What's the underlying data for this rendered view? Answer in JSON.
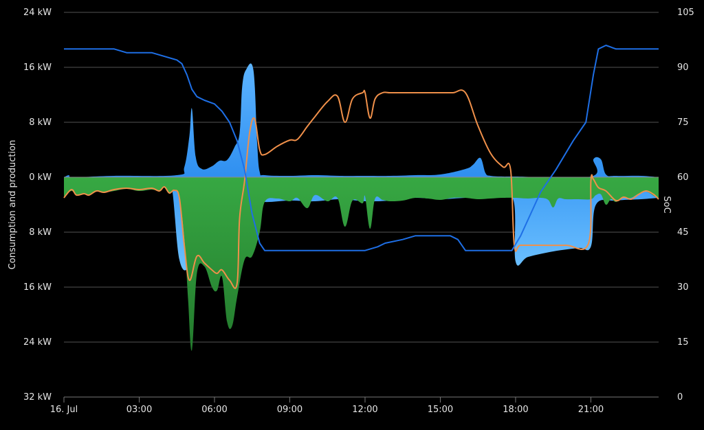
{
  "chart_data": {
    "type": "area",
    "ylabel_left": "Consumption and production",
    "ylabel_right": "SoC",
    "y_left_ticks": [
      "24 kW",
      "16 kW",
      "8 kW",
      "0 kW",
      "8 kW",
      "16 kW",
      "24 kW",
      "32 kW"
    ],
    "y_left_values": [
      24,
      16,
      8,
      0,
      -8,
      -16,
      -24,
      -32
    ],
    "y_left_range": [
      -32,
      24
    ],
    "y_right_ticks": [
      "105",
      "90",
      "75",
      "60",
      "45",
      "30",
      "15",
      "0"
    ],
    "y_right_values": [
      105,
      90,
      75,
      60,
      45,
      30,
      15,
      0
    ],
    "y_right_range": [
      0,
      105
    ],
    "x_ticks": [
      "16. Jul",
      "03:00",
      "06:00",
      "09:00",
      "12:00",
      "15:00",
      "18:00",
      "21:00"
    ],
    "x_tick_hours": [
      0,
      3,
      6,
      9,
      12,
      15,
      18,
      21
    ],
    "x_range_hours": [
      0,
      23.7
    ],
    "grid": true,
    "colors": {
      "grid": "#555555",
      "production_light_blue": "#4aa8ff",
      "consumption_green": "#2e9e3a",
      "soc_line": "#1e6fe6",
      "grid_power_line": "#f0904a",
      "text": "#e6e6e6"
    },
    "series": [
      {
        "kind": "area",
        "x": [
          0,
          0.2,
          0.4,
          2,
          4.5,
          4.8,
          5.0,
          5.1,
          5.25,
          5.5,
          5.9,
          6.2,
          6.5,
          6.8,
          7.0,
          7.1,
          7.25,
          7.55,
          7.7,
          7.8,
          8.0,
          9,
          10,
          11,
          12,
          13,
          14,
          15,
          16,
          16.3,
          16.6,
          16.8,
          17,
          17.5,
          18,
          21,
          21.1,
          21.4,
          21.6,
          22,
          23,
          23.7
        ],
        "y": [
          0,
          0.3,
          0,
          0.2,
          0.3,
          1.5,
          6,
          10,
          3,
          1.2,
          1.6,
          2.4,
          2.5,
          4.4,
          6.4,
          13,
          15.6,
          15.6,
          5,
          0.8,
          0.3,
          0.2,
          0.3,
          0.2,
          0.2,
          0.2,
          0.3,
          0.4,
          1.2,
          1.8,
          2.8,
          0.6,
          0.2,
          0.1,
          0.1,
          0.1,
          2.6,
          2.6,
          0.4,
          0.2,
          0.2,
          0
        ]
      },
      {
        "kind": "area",
        "x": [
          0,
          1,
          2,
          3,
          4,
          4.3,
          4.6,
          5.0,
          5.3,
          5.6,
          6.0,
          6.3,
          6.7,
          7.2,
          7.5,
          7.7,
          8,
          9,
          10,
          11,
          12,
          13,
          14,
          15,
          16,
          17,
          17.9,
          18.0,
          18.5,
          19.5,
          20.5,
          21.0,
          21.2,
          22,
          23,
          23.7
        ],
        "y": [
          -0.5,
          -0.7,
          -0.8,
          -0.8,
          -0.6,
          -1.5,
          -12,
          -13,
          -8,
          -9,
          -9.5,
          -10,
          -8,
          -4,
          -10,
          -3,
          -3.6,
          -3.4,
          -3.5,
          -3.2,
          -3.5,
          -3.4,
          -3.0,
          -3.2,
          -3.0,
          -3.0,
          -3.2,
          -12.3,
          -11.6,
          -10.8,
          -10.3,
          -10.1,
          -4,
          -3.4,
          -3.2,
          -3.0
        ]
      },
      {
        "kind": "area",
        "x": [
          0,
          0.3,
          0.5,
          0.8,
          1.0,
          1.3,
          1.6,
          2.0,
          2.5,
          3.0,
          3.5,
          3.8,
          4.0,
          4.2,
          4.4,
          4.6,
          4.8,
          4.95,
          5.1,
          5.3,
          5.6,
          5.9,
          6.1,
          6.3,
          6.5,
          6.7,
          6.9,
          7.2,
          7.5,
          7.8,
          8.0,
          8.5,
          9.0,
          9.3,
          9.7,
          10.0,
          10.5,
          10.9,
          11.2,
          11.5,
          11.9,
          12.0,
          12.2,
          12.4,
          12.7,
          13.0,
          13.5,
          14.0,
          14.5,
          15.0,
          15.5,
          16.0,
          16.5,
          17.0,
          17.5,
          18.0,
          18.5,
          19.0,
          19.3,
          19.5,
          19.7,
          20.0,
          20.5,
          21.0,
          21.2,
          21.4,
          21.6,
          21.8,
          22.0,
          22.3,
          22.6,
          22.9,
          23.2,
          23.5,
          23.7
        ],
        "y": [
          -2.8,
          -2.0,
          -2.6,
          -2.4,
          -2.6,
          -2.0,
          -2.2,
          -2.0,
          -1.7,
          -2.0,
          -1.8,
          -2.0,
          -1.4,
          -2.3,
          -1.9,
          -3.0,
          -9,
          -18,
          -25.2,
          -14,
          -13,
          -16,
          -16.5,
          -14.5,
          -21,
          -21.7,
          -17.5,
          -12,
          -11.5,
          -8,
          -3.6,
          -3.1,
          -3.5,
          -3.0,
          -4.5,
          -2.6,
          -3.5,
          -3.0,
          -7.2,
          -3.4,
          -3.8,
          -2.8,
          -7.5,
          -3.1,
          -3.3,
          -3.5,
          -3.4,
          -3.0,
          -3.1,
          -3.3,
          -3.0,
          -3.0,
          -3.2,
          -3.1,
          -3.0,
          -3.0,
          -3.1,
          -3.0,
          -3.3,
          -4.4,
          -3.1,
          -3.2,
          -3.2,
          -3.2,
          -2.6,
          -2.5,
          -4.0,
          -3.2,
          -3.6,
          -3.0,
          -3.0,
          -2.4,
          -2.1,
          -2.7,
          -3.2
        ]
      },
      {
        "kind": "line",
        "axis": "left",
        "x": [
          0,
          0.3,
          0.5,
          0.8,
          1.0,
          1.3,
          1.6,
          2.0,
          2.5,
          3.0,
          3.5,
          3.8,
          4.0,
          4.2,
          4.4,
          4.6,
          4.8,
          5.0,
          5.3,
          5.6,
          5.9,
          6.1,
          6.3,
          6.6,
          6.9,
          7.0,
          7.2,
          7.4,
          7.6,
          7.8,
          8.0,
          8.5,
          9.0,
          9.3,
          9.7,
          10.0,
          10.5,
          10.9,
          11.2,
          11.5,
          11.9,
          12.0,
          12.2,
          12.4,
          12.7,
          13.0,
          13.5,
          14.0,
          14.5,
          15.0,
          15.5,
          16.0,
          16.5,
          17.0,
          17.5,
          17.8,
          17.95,
          18.2,
          19.0,
          20.0,
          20.9,
          21.0,
          21.1,
          21.3,
          21.6,
          22.0,
          22.3,
          22.6,
          22.9,
          23.2,
          23.5,
          23.7
        ],
        "y": [
          -3.0,
          -1.8,
          -2.6,
          -2.4,
          -2.6,
          -2.0,
          -2.2,
          -1.8,
          -1.6,
          -1.8,
          -1.6,
          -2.0,
          -1.4,
          -2.3,
          -1.9,
          -3.0,
          -10,
          -15,
          -11.5,
          -12.5,
          -13.5,
          -14,
          -13.5,
          -15,
          -15.5,
          -6,
          -0.5,
          6.5,
          8.5,
          4,
          3.3,
          4.5,
          5.4,
          5.5,
          7.4,
          8.8,
          11,
          11.8,
          8,
          11.4,
          12.3,
          12.3,
          8.6,
          11.4,
          12.3,
          12.3,
          12.3,
          12.3,
          12.3,
          12.3,
          12.3,
          12.3,
          7.5,
          3.5,
          1.5,
          1.1,
          -9.9,
          -9.9,
          -9.9,
          -9.9,
          -9.7,
          -0.5,
          -0.3,
          -1.5,
          -2.0,
          -3.4,
          -2.9,
          -3.2,
          -2.5,
          -2.0,
          -2.5,
          -3.2
        ]
      },
      {
        "kind": "line",
        "axis": "right",
        "x": [
          0,
          0.6,
          1.2,
          2.0,
          2.5,
          3.0,
          3.5,
          4.5,
          4.7,
          4.9,
          5.1,
          5.3,
          5.6,
          6.0,
          6.3,
          6.6,
          6.9,
          7.2,
          7.5,
          7.8,
          8.0,
          8.5,
          9.0,
          10,
          11,
          12,
          12.5,
          12.8,
          13.5,
          14.0,
          14.5,
          15.0,
          15.4,
          15.7,
          16.0,
          17.0,
          17.5,
          17.85,
          18.2,
          18.6,
          19.0,
          19.6,
          20.3,
          20.8,
          21.1,
          21.3,
          21.6,
          22.0,
          23.0,
          23.7
        ],
        "y": [
          95,
          95,
          95,
          95,
          94,
          94,
          94,
          92,
          91,
          88,
          84,
          82,
          81,
          80,
          78,
          75,
          70,
          62,
          50,
          42,
          40,
          40,
          40,
          40,
          40,
          40,
          41,
          42,
          43,
          44,
          44,
          44,
          44,
          43,
          40,
          40,
          40,
          40,
          44,
          50,
          56,
          62,
          70,
          75,
          88,
          95,
          96,
          95,
          95,
          95
        ]
      }
    ]
  }
}
